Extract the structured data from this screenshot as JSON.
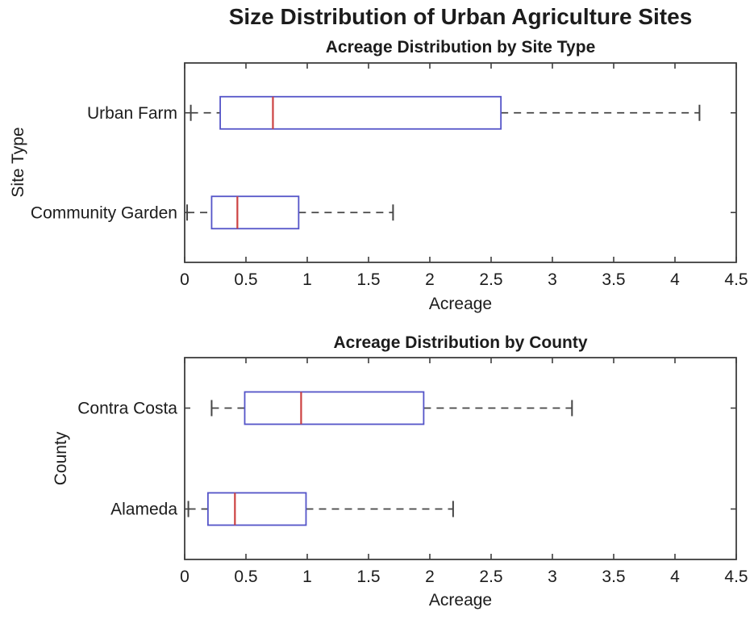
{
  "figure_title": "Size Distribution of Urban Agriculture Sites",
  "chart_data": [
    {
      "type": "boxplot",
      "orientation": "horizontal",
      "title": "Acreage Distribution by Site Type",
      "xlabel": "Acreage",
      "ylabel": "Site Type",
      "xlim": [
        0,
        4.5
      ],
      "xtick_labels": [
        "0",
        "0.5",
        "1",
        "1.5",
        "2",
        "2.5",
        "3",
        "3.5",
        "4",
        "4.5"
      ],
      "categories": [
        "Urban Farm",
        "Community Garden"
      ],
      "series": [
        {
          "name": "Urban Farm",
          "whisker_low": 0.05,
          "q1": 0.29,
          "median": 0.72,
          "q3": 2.58,
          "whisker_high": 4.2
        },
        {
          "name": "Community Garden",
          "whisker_low": 0.02,
          "q1": 0.22,
          "median": 0.43,
          "q3": 0.93,
          "whisker_high": 1.7
        }
      ]
    },
    {
      "type": "boxplot",
      "orientation": "horizontal",
      "title": "Acreage Distribution by County",
      "xlabel": "Acreage",
      "ylabel": "County",
      "xlim": [
        0,
        4.5
      ],
      "xtick_labels": [
        "0",
        "0.5",
        "1",
        "1.5",
        "2",
        "2.5",
        "3",
        "3.5",
        "4",
        "4.5"
      ],
      "categories": [
        "Contra Costa",
        "Alameda"
      ],
      "series": [
        {
          "name": "Contra Costa",
          "whisker_low": 0.22,
          "q1": 0.49,
          "median": 0.95,
          "q3": 1.95,
          "whisker_high": 3.16
        },
        {
          "name": "Alameda",
          "whisker_low": 0.03,
          "q1": 0.19,
          "median": 0.41,
          "q3": 0.99,
          "whisker_high": 2.19
        }
      ]
    }
  ],
  "colors": {
    "box_edge": "#5454c8",
    "median": "#cc4242",
    "whisker": "#454545",
    "axis": "#3e3e3e",
    "text": "#1c1c1c",
    "background": "#ffffff"
  }
}
